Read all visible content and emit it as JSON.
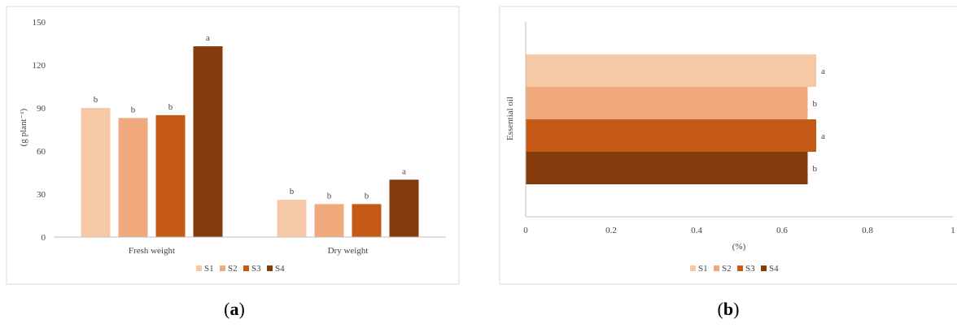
{
  "figure": {
    "captions": [
      {
        "prefix": "(",
        "letter": "a",
        "suffix": ")"
      },
      {
        "prefix": "(",
        "letter": "b",
        "suffix": ")"
      }
    ]
  },
  "colors": {
    "S1": "#f7c8a5",
    "S2": "#f0a97d",
    "S3": "#c55a16",
    "S4": "#843c0c",
    "axis": "#bfbfbf",
    "text": "#444444",
    "border": "#d9d9d9"
  },
  "chart_data": [
    {
      "type": "bar",
      "orientation": "vertical",
      "title": "",
      "xlabel": "",
      "ylabel": "(g plant⁻¹)",
      "ylim": [
        0,
        150
      ],
      "yticks": [
        0,
        30,
        60,
        90,
        120,
        150
      ],
      "grid": false,
      "legend": "bottom",
      "categories": [
        "Fresh weight",
        "Dry weight"
      ],
      "series": [
        {
          "name": "S1",
          "values": [
            90,
            26
          ],
          "letters": [
            "b",
            "b"
          ]
        },
        {
          "name": "S2",
          "values": [
            83,
            23
          ],
          "letters": [
            "b",
            "b"
          ]
        },
        {
          "name": "S3",
          "values": [
            85,
            23
          ],
          "letters": [
            "b",
            "b"
          ]
        },
        {
          "name": "S4",
          "values": [
            133,
            40
          ],
          "letters": [
            "a",
            "a"
          ]
        }
      ]
    },
    {
      "type": "bar",
      "orientation": "horizontal",
      "title": "",
      "xlabel": "(%)",
      "ylabel": "Essential oil",
      "xlim": [
        0,
        1
      ],
      "xticks": [
        0,
        0.2,
        0.4,
        0.6,
        0.8,
        1
      ],
      "grid": false,
      "legend": "bottom",
      "categories": [
        "Essential oil"
      ],
      "series": [
        {
          "name": "S1",
          "values": [
            0.68
          ],
          "letters": [
            "a"
          ]
        },
        {
          "name": "S2",
          "values": [
            0.66
          ],
          "letters": [
            "b"
          ]
        },
        {
          "name": "S3",
          "values": [
            0.68
          ],
          "letters": [
            "a"
          ]
        },
        {
          "name": "S4",
          "values": [
            0.66
          ],
          "letters": [
            "b"
          ]
        }
      ]
    }
  ]
}
